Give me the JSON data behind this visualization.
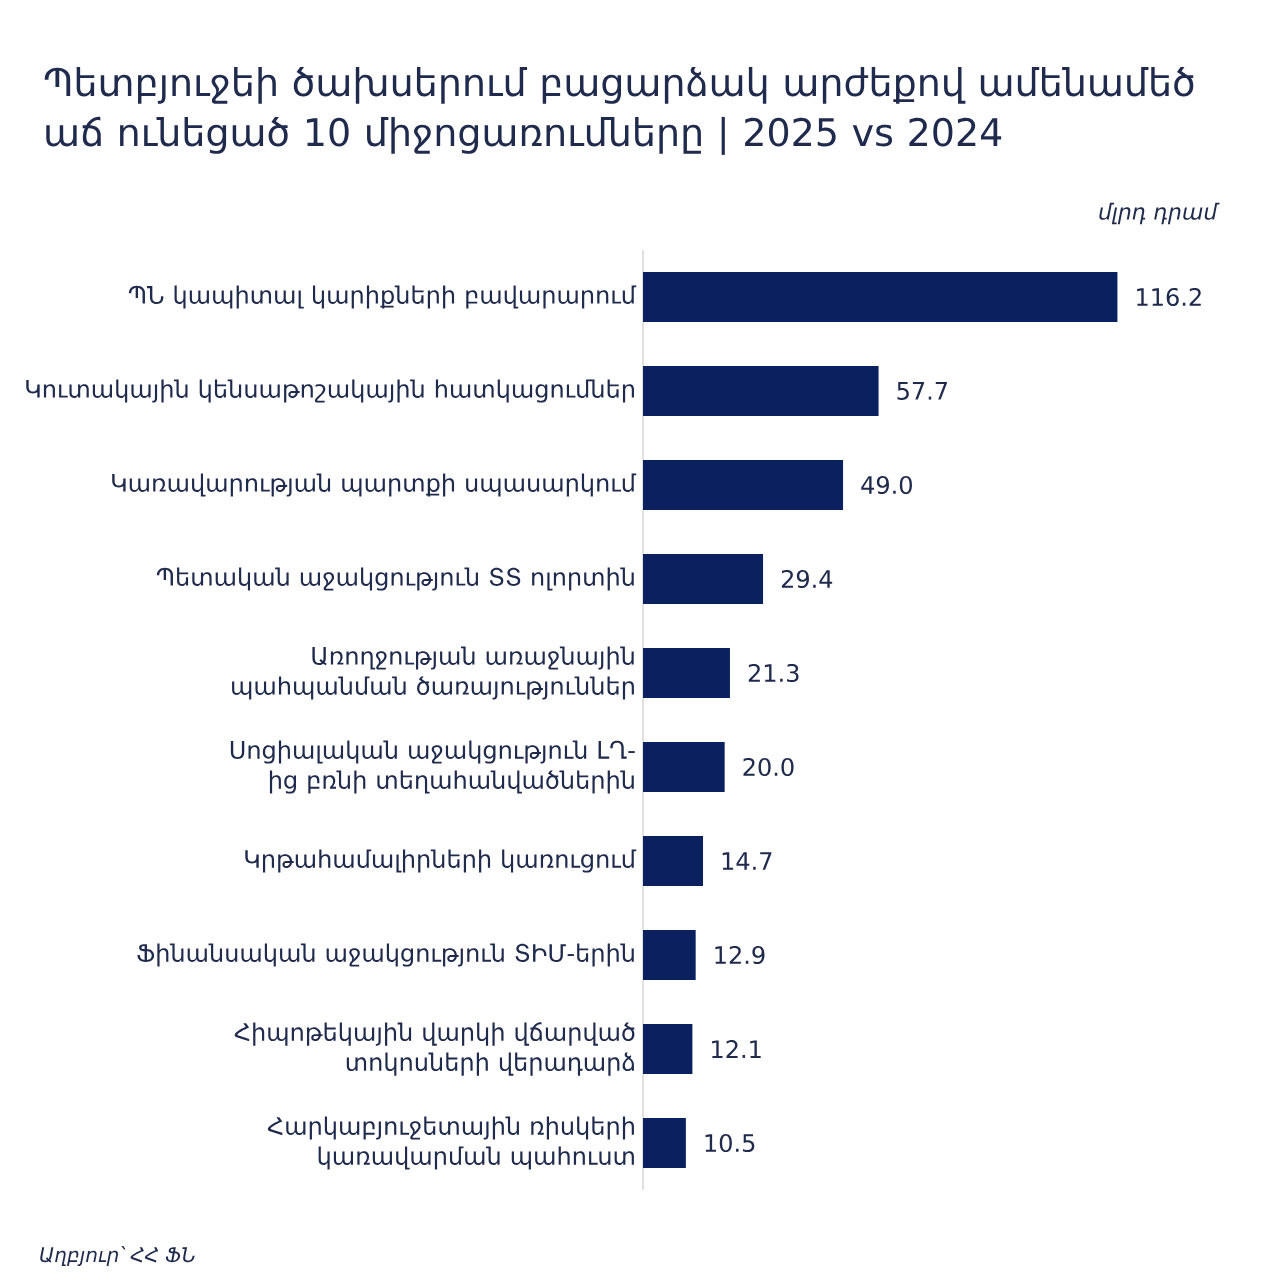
{
  "chart_data": {
    "type": "bar",
    "orientation": "horizontal",
    "title": "Պետբյուջեի ծախսերում բացարձակ արժեքով ամենամեծ աճ ունեցած 10 միջոցառումները | 2025 vs 2024",
    "xlabel": "մլրդ դրամ",
    "categories": [
      "ՊՆ կապիտալ կարիքների բավարարում",
      "Կուտակային կենսաթոշակային հատկացումներ",
      "Կառավարության պարտքի սպասարկում",
      "Պետական աջակցություն ՏՏ ոլորտին",
      "Առողջության առաջնային պահպանման ծառայություններ",
      "Սոցիալական աջակցություն ԼՂ-ից բռնի տեղահանվածներին",
      "Կրթահամալիրների կառուցում",
      "Ֆինանսական աջակցություն ՏԻՄ-երին",
      "Հիպոթեկային վարկի վճարված տոկոսների վերադարձ",
      "Հարկաբյուջետային ռիսկերի կառավարման պահուստ"
    ],
    "values": [
      116.2,
      57.7,
      49.0,
      29.4,
      21.3,
      20.0,
      14.7,
      12.9,
      12.1,
      10.5
    ],
    "color": "#0b215f",
    "value_labels": [
      "116.2",
      "57.7",
      "49.0",
      "29.4",
      "21.3",
      "20.0",
      "14.7",
      "12.9",
      "12.1",
      "10.5"
    ],
    "annotations": [
      "Աղբյուր՝ ՀՀ ՖՆ"
    ]
  }
}
